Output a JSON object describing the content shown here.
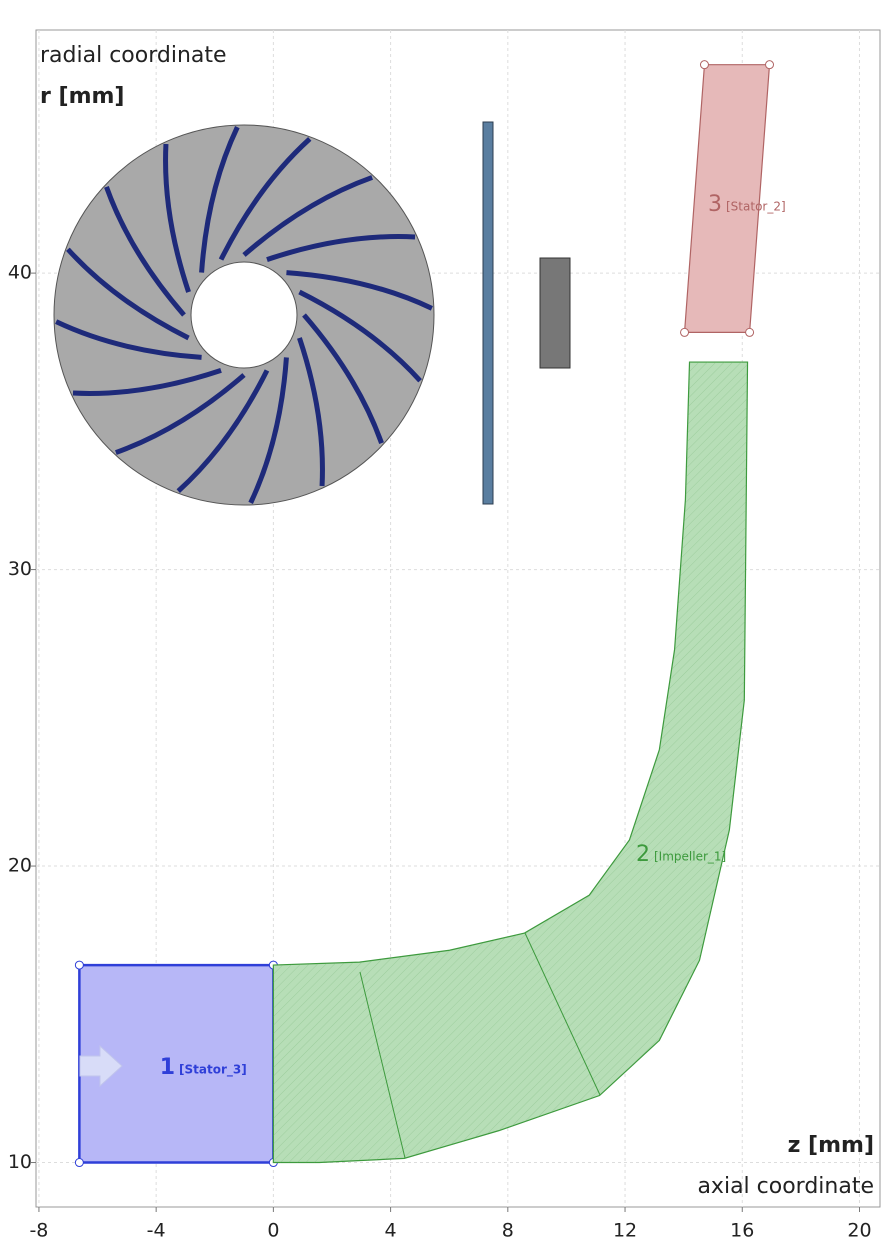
{
  "chart_data": {
    "type": "meridional",
    "y_label_top": "radial coordinate",
    "y_label": "r [mm]",
    "x_label": "z [mm]",
    "x_label_bottom": "axial coordinate",
    "xlim": [
      -8.1,
      20.7
    ],
    "ylim": [
      8.5,
      48.2
    ],
    "xticks": [
      -8,
      -4,
      0,
      4,
      8,
      12,
      16,
      20
    ],
    "yticks": [
      10,
      20,
      30,
      40
    ],
    "grid": true,
    "components": [
      {
        "number": "1",
        "name": "[Stator_3]",
        "color": "#b7b7f7",
        "stroke": "#2f3fd8",
        "z": [
          -6.62,
          0,
          0,
          -6.62
        ],
        "r": [
          10,
          10,
          16.66,
          16.66
        ]
      },
      {
        "number": "2",
        "name": "[Impeller_1]",
        "color": "#b7deb7",
        "stroke": "#3d9a3d",
        "z": [
          0,
          1.57,
          4.47,
          7.71,
          11.13,
          13.17,
          14.54,
          15.56,
          16.07,
          16.18,
          14.2,
          14.06,
          13.69,
          13.17,
          12.15,
          10.78,
          8.57,
          6.01,
          2.94,
          0
        ],
        "r": [
          10,
          10,
          10.14,
          11.08,
          12.26,
          14.12,
          16.82,
          21.22,
          25.6,
          37.0,
          37.0,
          32.36,
          27.3,
          23.92,
          20.88,
          19.02,
          17.74,
          17.16,
          16.76,
          16.66
        ]
      },
      {
        "number": "3",
        "name": "[Stator_2]",
        "color": "#e6b9b9",
        "stroke": "#b06464",
        "z": [
          14.03,
          16.25,
          16.93,
          14.71
        ],
        "r": [
          38.0,
          38.0,
          47.03,
          47.03
        ]
      }
    ]
  }
}
